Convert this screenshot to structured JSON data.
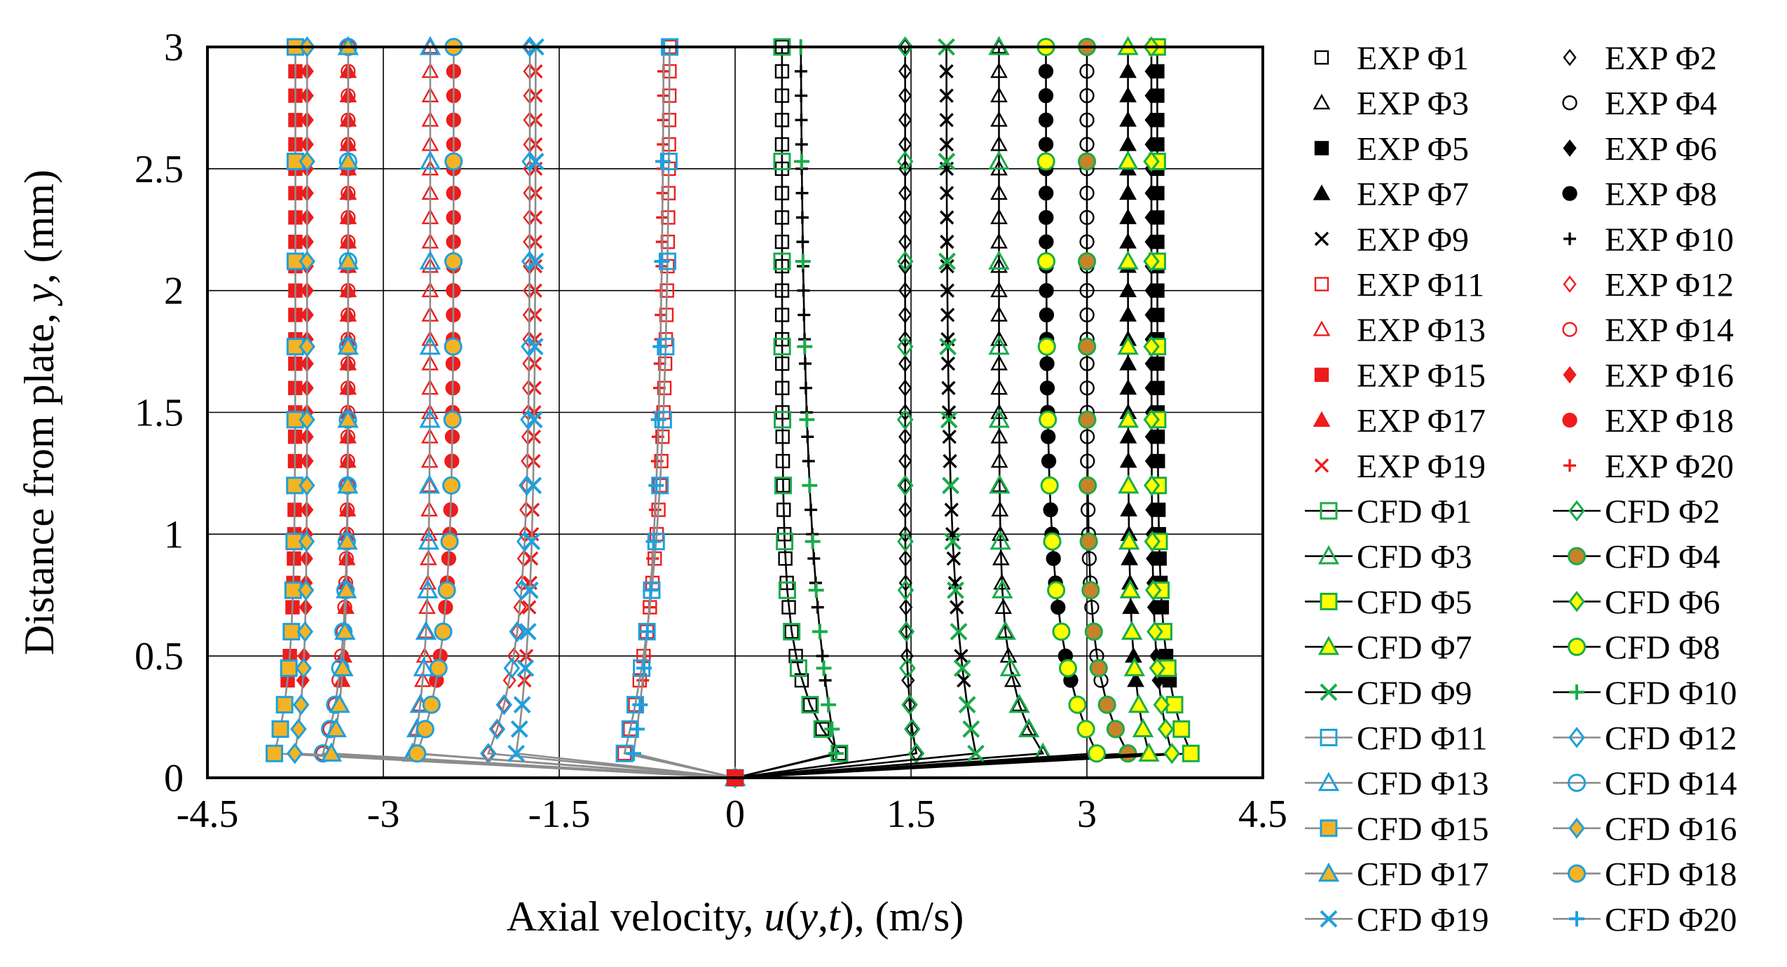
{
  "chart_data": {
    "type": "line",
    "xlabel_parts": [
      "Axial velocity, ",
      "u",
      "(",
      "y",
      ",",
      "t",
      "), (m/s)"
    ],
    "ylabel_parts": [
      "Distance from plate, ",
      "y",
      ", (mm)"
    ],
    "xlim": [
      -4.5,
      4.5
    ],
    "ylim": [
      0,
      3
    ],
    "xticks": [
      -4.5,
      -3,
      -1.5,
      0,
      1.5,
      3,
      4.5
    ],
    "xtick_labels": [
      "-4.5",
      "-3",
      "-1.5",
      "0",
      "1.5",
      "3",
      "4.5"
    ],
    "yticks": [
      0,
      0.5,
      1,
      1.5,
      2,
      2.5,
      3
    ],
    "ytick_labels": [
      "0",
      "0.5",
      "1",
      "1.5",
      "2",
      "2.5",
      "3"
    ],
    "grid": true,
    "legend_position": "right",
    "exp_y": [
      0.1,
      0.2,
      0.3,
      0.4,
      0.5,
      0.6,
      0.7,
      0.8,
      0.9,
      1.0,
      1.1,
      1.2,
      1.3,
      1.4,
      1.5,
      1.6,
      1.7,
      1.8,
      1.9,
      2.0,
      2.1,
      2.2,
      2.3,
      2.4,
      2.5,
      2.6,
      2.7,
      2.8,
      2.9,
      3.0
    ],
    "cfd_y": [
      0.0,
      0.1,
      0.2,
      0.3,
      0.45,
      0.6,
      0.77,
      0.97,
      1.2,
      1.47,
      1.77,
      2.12,
      2.53,
      3.0
    ],
    "profiles": [
      {
        "id": 1,
        "u0": 0.4,
        "uw": 1.1,
        "d": 0.28
      },
      {
        "id": 2,
        "u0": 1.45,
        "uw": 1.6,
        "d": 0.22
      },
      {
        "id": 3,
        "u0": 2.25,
        "uw": 2.8,
        "d": 0.26
      },
      {
        "id": 4,
        "u0": 3.0,
        "uw": 3.5,
        "d": 0.28
      },
      {
        "id": 5,
        "u0": 3.6,
        "uw": 4.0,
        "d": 0.3
      },
      {
        "id": 6,
        "u0": 3.55,
        "uw": 3.8,
        "d": 0.28
      },
      {
        "id": 7,
        "u0": 3.35,
        "uw": 3.6,
        "d": 0.3
      },
      {
        "id": 8,
        "u0": 2.65,
        "uw": 3.2,
        "d": 0.42
      },
      {
        "id": 9,
        "u0": 1.8,
        "uw": 2.1,
        "d": 0.58
      },
      {
        "id": 10,
        "u0": 0.55,
        "uw": 0.9,
        "d": 0.85
      },
      {
        "id": 11,
        "u0": -0.55,
        "uw": -1.0,
        "d": 0.75
      },
      {
        "id": 12,
        "u0": -1.75,
        "uw": -2.2,
        "d": 0.42
      },
      {
        "id": 13,
        "u0": -2.6,
        "uw": -2.8,
        "d": 0.35
      },
      {
        "id": 14,
        "u0": -3.3,
        "uw": -3.6,
        "d": 0.3
      },
      {
        "id": 15,
        "u0": -3.75,
        "uw": -4.0,
        "d": 0.3
      },
      {
        "id": 16,
        "u0": -3.65,
        "uw": -3.8,
        "d": 0.28
      },
      {
        "id": 17,
        "u0": -3.3,
        "uw": -3.5,
        "d": 0.3
      },
      {
        "id": 18,
        "u0": -2.4,
        "uw": -2.8,
        "d": 0.4
      },
      {
        "id": 19,
        "u0": -1.7,
        "uw": -1.9,
        "d": 0.55
      },
      {
        "id": 20,
        "u0": -0.6,
        "uw": -0.9,
        "d": 0.85
      }
    ],
    "series": [
      {
        "name": "EXP Φ1",
        "kind": "exp",
        "profile": 1,
        "marker": "square",
        "color": "#000000",
        "fill": "none"
      },
      {
        "name": "EXP Φ2",
        "kind": "exp",
        "profile": 2,
        "marker": "diamond",
        "color": "#000000",
        "fill": "none"
      },
      {
        "name": "EXP Φ3",
        "kind": "exp",
        "profile": 3,
        "marker": "triangle",
        "color": "#000000",
        "fill": "none"
      },
      {
        "name": "EXP Φ4",
        "kind": "exp",
        "profile": 4,
        "marker": "circle",
        "color": "#000000",
        "fill": "none"
      },
      {
        "name": "EXP Φ5",
        "kind": "exp",
        "profile": 5,
        "marker": "square",
        "color": "#000000",
        "fill": "#000000"
      },
      {
        "name": "EXP Φ6",
        "kind": "exp",
        "profile": 6,
        "marker": "diamond",
        "color": "#000000",
        "fill": "#000000"
      },
      {
        "name": "EXP Φ7",
        "kind": "exp",
        "profile": 7,
        "marker": "triangle",
        "color": "#000000",
        "fill": "#000000"
      },
      {
        "name": "EXP Φ8",
        "kind": "exp",
        "profile": 8,
        "marker": "circle",
        "color": "#000000",
        "fill": "#000000"
      },
      {
        "name": "EXP Φ9",
        "kind": "exp",
        "profile": 9,
        "marker": "x",
        "color": "#000000",
        "fill": "none"
      },
      {
        "name": "EXP Φ10",
        "kind": "exp",
        "profile": 10,
        "marker": "plus",
        "color": "#000000",
        "fill": "none"
      },
      {
        "name": "EXP Φ11",
        "kind": "exp",
        "profile": 11,
        "marker": "square",
        "color": "#ee1c1c",
        "fill": "none"
      },
      {
        "name": "EXP Φ12",
        "kind": "exp",
        "profile": 12,
        "marker": "diamond",
        "color": "#ee1c1c",
        "fill": "none"
      },
      {
        "name": "EXP Φ13",
        "kind": "exp",
        "profile": 13,
        "marker": "triangle",
        "color": "#ee1c1c",
        "fill": "none"
      },
      {
        "name": "EXP Φ14",
        "kind": "exp",
        "profile": 14,
        "marker": "circle",
        "color": "#ee1c1c",
        "fill": "none"
      },
      {
        "name": "EXP Φ15",
        "kind": "exp",
        "profile": 15,
        "marker": "square",
        "color": "#ee1c1c",
        "fill": "#ee1c1c"
      },
      {
        "name": "EXP Φ16",
        "kind": "exp",
        "profile": 16,
        "marker": "diamond",
        "color": "#ee1c1c",
        "fill": "#ee1c1c"
      },
      {
        "name": "EXP Φ17",
        "kind": "exp",
        "profile": 17,
        "marker": "triangle",
        "color": "#ee1c1c",
        "fill": "#ee1c1c"
      },
      {
        "name": "EXP Φ18",
        "kind": "exp",
        "profile": 18,
        "marker": "circle",
        "color": "#ee1c1c",
        "fill": "#ee1c1c"
      },
      {
        "name": "EXP Φ19",
        "kind": "exp",
        "profile": 19,
        "marker": "x",
        "color": "#ee1c1c",
        "fill": "none"
      },
      {
        "name": "EXP Φ20",
        "kind": "exp",
        "profile": 20,
        "marker": "plus",
        "color": "#ee1c1c",
        "fill": "none"
      },
      {
        "name": "CFD Φ1",
        "kind": "cfd",
        "profile": 1,
        "marker": "square",
        "color": "#1aab4b",
        "fill": "none",
        "line": "#000000"
      },
      {
        "name": "CFD Φ2",
        "kind": "cfd",
        "profile": 2,
        "marker": "diamond",
        "color": "#1aab4b",
        "fill": "none",
        "line": "#000000"
      },
      {
        "name": "CFD Φ3",
        "kind": "cfd",
        "profile": 3,
        "marker": "triangle",
        "color": "#1aab4b",
        "fill": "none",
        "line": "#000000"
      },
      {
        "name": "CFD Φ4",
        "kind": "cfd",
        "profile": 4,
        "marker": "circle",
        "color": "#1aab4b",
        "fill": "#c8832a",
        "line": "#000000"
      },
      {
        "name": "CFD Φ5",
        "kind": "cfd",
        "profile": 5,
        "marker": "square",
        "color": "#1aab4b",
        "fill": "#ffff00",
        "line": "#000000"
      },
      {
        "name": "CFD Φ6",
        "kind": "cfd",
        "profile": 6,
        "marker": "diamond",
        "color": "#1aab4b",
        "fill": "#ffff00",
        "line": "#000000"
      },
      {
        "name": "CFD Φ7",
        "kind": "cfd",
        "profile": 7,
        "marker": "triangle",
        "color": "#1aab4b",
        "fill": "#ffff00",
        "line": "#000000"
      },
      {
        "name": "CFD Φ8",
        "kind": "cfd",
        "profile": 8,
        "marker": "circle",
        "color": "#1aab4b",
        "fill": "#ffff00",
        "line": "#000000"
      },
      {
        "name": "CFD Φ9",
        "kind": "cfd",
        "profile": 9,
        "marker": "x",
        "color": "#1aab4b",
        "fill": "none",
        "line": "#000000"
      },
      {
        "name": "CFD Φ10",
        "kind": "cfd",
        "profile": 10,
        "marker": "plus",
        "color": "#1aab4b",
        "fill": "none",
        "line": "#000000"
      },
      {
        "name": "CFD Φ11",
        "kind": "cfd",
        "profile": 11,
        "marker": "square",
        "color": "#1ea0dc",
        "fill": "none",
        "line": "#8c8c8c"
      },
      {
        "name": "CFD Φ12",
        "kind": "cfd",
        "profile": 12,
        "marker": "diamond",
        "color": "#1ea0dc",
        "fill": "none",
        "line": "#8c8c8c"
      },
      {
        "name": "CFD Φ13",
        "kind": "cfd",
        "profile": 13,
        "marker": "triangle",
        "color": "#1ea0dc",
        "fill": "none",
        "line": "#8c8c8c"
      },
      {
        "name": "CFD Φ14",
        "kind": "cfd",
        "profile": 14,
        "marker": "circle",
        "color": "#1ea0dc",
        "fill": "none",
        "line": "#8c8c8c"
      },
      {
        "name": "CFD Φ15",
        "kind": "cfd",
        "profile": 15,
        "marker": "square",
        "color": "#1ea0dc",
        "fill": "#f5b324",
        "line": "#8c8c8c"
      },
      {
        "name": "CFD Φ16",
        "kind": "cfd",
        "profile": 16,
        "marker": "diamond",
        "color": "#1ea0dc",
        "fill": "#f5b324",
        "line": "#8c8c8c"
      },
      {
        "name": "CFD Φ17",
        "kind": "cfd",
        "profile": 17,
        "marker": "triangle",
        "color": "#1ea0dc",
        "fill": "#f5b324",
        "line": "#8c8c8c"
      },
      {
        "name": "CFD Φ18",
        "kind": "cfd",
        "profile": 18,
        "marker": "circle",
        "color": "#1ea0dc",
        "fill": "#f5b324",
        "line": "#8c8c8c"
      },
      {
        "name": "CFD Φ19",
        "kind": "cfd",
        "profile": 19,
        "marker": "x",
        "color": "#1ea0dc",
        "fill": "none",
        "line": "#8c8c8c"
      },
      {
        "name": "CFD Φ20",
        "kind": "cfd",
        "profile": 20,
        "marker": "plus",
        "color": "#1ea0dc",
        "fill": "none",
        "line": "#8c8c8c"
      }
    ]
  }
}
